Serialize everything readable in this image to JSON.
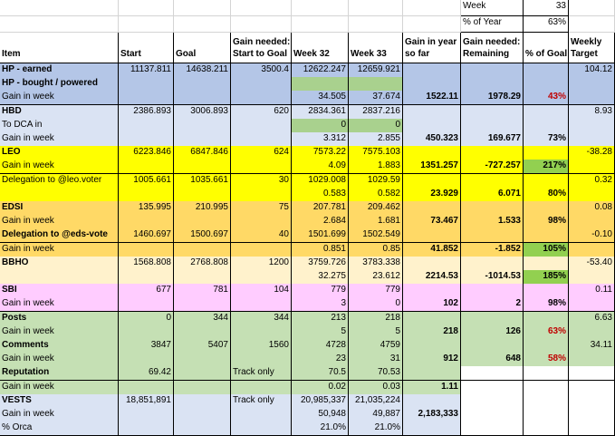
{
  "top_info": {
    "week_label": "Week",
    "week_value": "33",
    "year_label": "% of Year",
    "year_value": "63%"
  },
  "headers": {
    "item": "Item",
    "start": "Start",
    "goal": "Goal",
    "gain_needed_1": "Gain needed:",
    "gain_needed_2": "Start to Goal",
    "week32": "Week 32",
    "week33": "Week 33",
    "gain_year_1": "Gain in year",
    "gain_year_2": "so far",
    "gain_rem_1": "Gain needed:",
    "gain_rem_2": "Remaining",
    "pct_goal": "% of Goal",
    "weekly_1": "Weekly",
    "weekly_2": "Target"
  },
  "rows": [
    {
      "item": "HP - earned",
      "start": "11137.811",
      "goal": "14638.211",
      "need": "3500.4",
      "w32": "12622.247",
      "w33": "12659.921",
      "gy": "",
      "rem": "",
      "pct": "",
      "wt": "104.12"
    },
    {
      "item": "HP - bought / powered",
      "start": "",
      "goal": "",
      "need": "",
      "w32": "",
      "w33": "",
      "gy": "",
      "rem": "",
      "pct": "",
      "wt": ""
    },
    {
      "item": "Gain in week",
      "start": "",
      "goal": "",
      "need": "",
      "w32": "34.505",
      "w33": "37.674",
      "gy": "1522.11",
      "rem": "1978.29",
      "pct": "43%",
      "wt": ""
    },
    {
      "item": "HBD",
      "start": "2386.893",
      "goal": "3006.893",
      "need": "620",
      "w32": "2834.361",
      "w33": "2837.216",
      "gy": "",
      "rem": "",
      "pct": "",
      "wt": "8.93"
    },
    {
      "item": "To DCA in",
      "start": "",
      "goal": "",
      "need": "",
      "w32": "0",
      "w33": "0",
      "gy": "",
      "rem": "",
      "pct": "",
      "wt": ""
    },
    {
      "item": "Gain in week",
      "start": "",
      "goal": "",
      "need": "",
      "w32": "3.312",
      "w33": "2.855",
      "gy": "450.323",
      "rem": "169.677",
      "pct": "73%",
      "wt": ""
    },
    {
      "item": "LEO",
      "start": "6223.846",
      "goal": "6847.846",
      "need": "624",
      "w32": "7573.22",
      "w33": "7575.103",
      "gy": "",
      "rem": "",
      "pct": "",
      "wt": "-38.28"
    },
    {
      "item": "Gain in week",
      "start": "",
      "goal": "",
      "need": "",
      "w32": "4.09",
      "w33": "1.883",
      "gy": "1351.257",
      "rem": "-727.257",
      "pct": "217%",
      "wt": ""
    },
    {
      "item": "Delegation to @leo.voter",
      "start": "1005.661",
      "goal": "1035.661",
      "need": "30",
      "w32": "1029.008",
      "w33": "1029.59",
      "gy": "",
      "rem": "",
      "pct": "",
      "wt": "0.32"
    },
    {
      "item": "",
      "start": "",
      "goal": "",
      "need": "",
      "w32": "0.583",
      "w33": "0.582",
      "gy": "23.929",
      "rem": "6.071",
      "pct": "80%",
      "wt": ""
    },
    {
      "item": "EDSI",
      "start": "135.995",
      "goal": "210.995",
      "need": "75",
      "w32": "207.781",
      "w33": "209.462",
      "gy": "",
      "rem": "",
      "pct": "",
      "wt": "0.08"
    },
    {
      "item": "Gain in week",
      "start": "",
      "goal": "",
      "need": "",
      "w32": "2.684",
      "w33": "1.681",
      "gy": "73.467",
      "rem": "1.533",
      "pct": "98%",
      "wt": ""
    },
    {
      "item": "Delegation to @eds-vote",
      "start": "1460.697",
      "goal": "1500.697",
      "need": "40",
      "w32": "1501.699",
      "w33": "1502.549",
      "gy": "",
      "rem": "",
      "pct": "",
      "wt": "-0.10"
    },
    {
      "item": "Gain in week",
      "start": "",
      "goal": "",
      "need": "",
      "w32": "0.851",
      "w33": "0.85",
      "gy": "41.852",
      "rem": "-1.852",
      "pct": "105%",
      "wt": ""
    },
    {
      "item": "BBHO",
      "start": "1568.808",
      "goal": "2768.808",
      "need": "1200",
      "w32": "3759.726",
      "w33": "3783.338",
      "gy": "",
      "rem": "",
      "pct": "",
      "wt": "-53.40"
    },
    {
      "item": "",
      "start": "",
      "goal": "",
      "need": "",
      "w32": "32.275",
      "w33": "23.612",
      "gy": "2214.53",
      "rem": "-1014.53",
      "pct": "185%",
      "wt": ""
    },
    {
      "item": "SBI",
      "start": "677",
      "goal": "781",
      "need": "104",
      "w32": "779",
      "w33": "779",
      "gy": "",
      "rem": "",
      "pct": "",
      "wt": "0.11"
    },
    {
      "item": "Gain in week",
      "start": "",
      "goal": "",
      "need": "",
      "w32": "3",
      "w33": "0",
      "gy": "102",
      "rem": "2",
      "pct": "98%",
      "wt": ""
    },
    {
      "item": "Posts",
      "start": "0",
      "goal": "344",
      "need": "344",
      "w32": "213",
      "w33": "218",
      "gy": "",
      "rem": "",
      "pct": "",
      "wt": "6.63"
    },
    {
      "item": "Gain in week",
      "start": "",
      "goal": "",
      "need": "",
      "w32": "5",
      "w33": "5",
      "gy": "218",
      "rem": "126",
      "pct": "63%",
      "wt": ""
    },
    {
      "item": "Comments",
      "start": "3847",
      "goal": "5407",
      "need": "1560",
      "w32": "4728",
      "w33": "4759",
      "gy": "",
      "rem": "",
      "pct": "",
      "wt": "34.11"
    },
    {
      "item": "Gain in week",
      "start": "",
      "goal": "",
      "need": "",
      "w32": "23",
      "w33": "31",
      "gy": "912",
      "rem": "648",
      "pct": "58%",
      "wt": ""
    },
    {
      "item": "Reputation",
      "start": "69.42",
      "goal": "",
      "need": "Track only",
      "w32": "70.5",
      "w33": "70.53",
      "gy": "",
      "rem": "",
      "pct": "",
      "wt": ""
    },
    {
      "item": "Gain in week",
      "start": "",
      "goal": "",
      "need": "",
      "w32": "0.02",
      "w33": "0.03",
      "gy": "1.11",
      "rem": "",
      "pct": "",
      "wt": ""
    },
    {
      "item": "VESTS",
      "start": "18,851,891",
      "goal": "",
      "need": "Track only",
      "w32": "20,985,337",
      "w33": "21,035,224",
      "gy": "",
      "rem": "",
      "pct": "",
      "wt": ""
    },
    {
      "item": "Gain in week",
      "start": "",
      "goal": "",
      "need": "",
      "w32": "50,948",
      "w33": "49,887",
      "gy": "2,183,333",
      "rem": "",
      "pct": "",
      "wt": ""
    },
    {
      "item": "% Orca",
      "start": "",
      "goal": "",
      "need": "",
      "w32": "21.0%",
      "w33": "21.0%",
      "gy": "",
      "rem": "",
      "pct": "",
      "wt": ""
    }
  ],
  "colors": {
    "blue": "#b4c6e7",
    "lavender": "#dae3f3",
    "yellow": "#ffff00",
    "orange": "#ffd966",
    "peach": "#fff2cc",
    "pink": "#ffccff",
    "green": "#c5e0b4",
    "bright_green": "#92d050",
    "teal_green": "#a9d18e"
  }
}
